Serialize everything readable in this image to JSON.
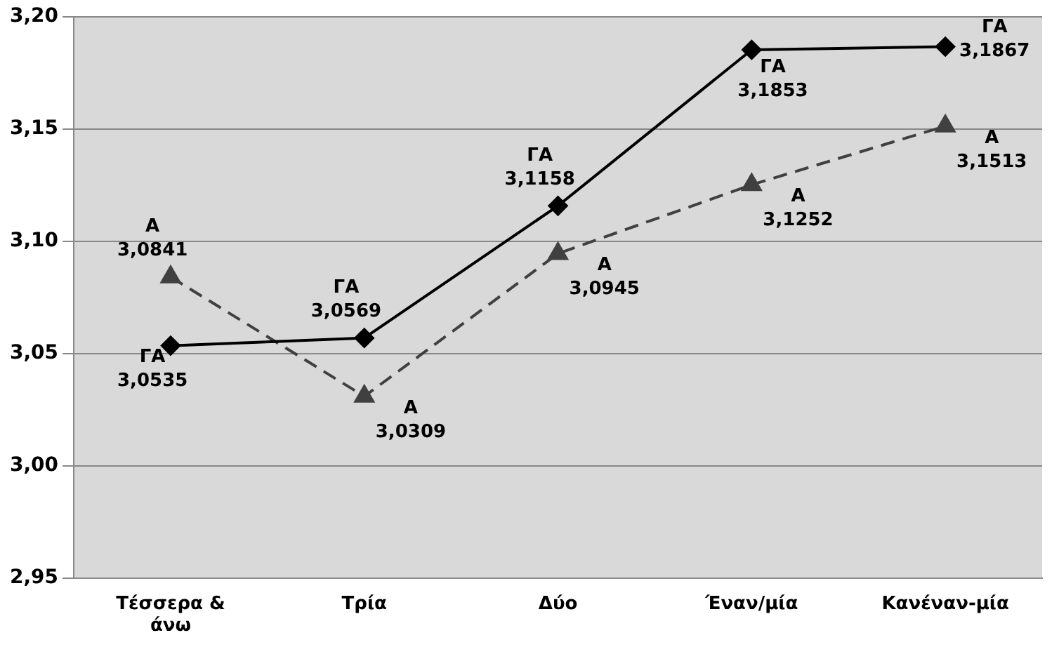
{
  "chart_data": {
    "type": "line",
    "categories": [
      "Τέσσερα & άνω",
      "Τρία",
      "Δύο",
      "Έναν/μία",
      "Κανέναν-μία"
    ],
    "series": [
      {
        "name": "ΓΑ",
        "color": "#000000",
        "values": [
          3.0535,
          3.0569,
          3.1158,
          3.1853,
          3.1867
        ],
        "value_labels": [
          "3,0535",
          "3,0569",
          "3,1158",
          "3,1853",
          "3,1867"
        ],
        "marker": "diamond",
        "line_style": "solid"
      },
      {
        "name": "Α",
        "color": "#404040",
        "values": [
          3.0841,
          3.0309,
          3.0945,
          3.1252,
          3.1513
        ],
        "value_labels": [
          "3,0841",
          "3,0309",
          "3,0945",
          "3,1252",
          "3,1513"
        ],
        "marker": "triangle",
        "line_style": "dashed"
      }
    ],
    "ylim": [
      2.95,
      3.2
    ],
    "yticks": [
      {
        "value": 2.95,
        "label": "2,95"
      },
      {
        "value": 3.0,
        "label": "3,00"
      },
      {
        "value": 3.05,
        "label": "3,05"
      },
      {
        "value": 3.1,
        "label": "3,10"
      },
      {
        "value": 3.15,
        "label": "3,15"
      },
      {
        "value": 3.2,
        "label": "3,20"
      }
    ],
    "grid": "y",
    "legend": false
  }
}
